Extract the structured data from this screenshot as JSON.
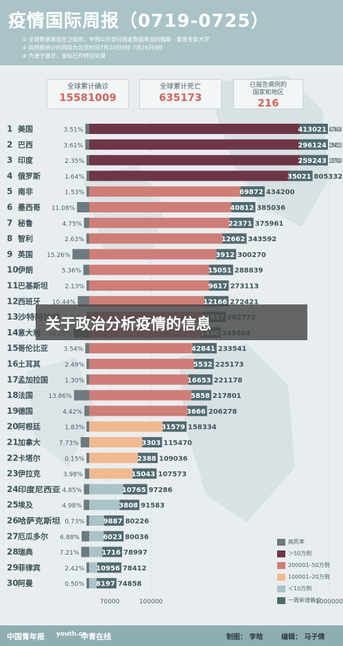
{
  "header": {
    "title": "疫情国际周报（0719-0725）",
    "notes": [
      "① 全球数据来自世卫组织，中国以外部分国家数据来自约翰斯 · 霍普金斯大学",
      "② 病例数统计时间段为北京时间7月20日9时-7月26日9时",
      "③ 为便于展示，坐标已作特别处理"
    ]
  },
  "stats": [
    {
      "label": "全球累计确诊",
      "value": "15581009"
    },
    {
      "label": "全球累计死亡",
      "value": "635173"
    },
    {
      "label": "已报告病例的\n国家和地区",
      "value": "216"
    }
  ],
  "banner": {
    "text": "关于政治分析疫情的信息"
  },
  "legend": [
    {
      "label": "病死率",
      "color": "#6b7b80"
    },
    {
      "label": "＞50万例",
      "color": "#6e3545"
    },
    {
      "label": "200001–50万例",
      "color": "#cf7d76"
    },
    {
      "label": "100001–20万例",
      "color": "#f2b98f"
    },
    {
      "label": "＜10万例",
      "color": "#a9c3c6"
    },
    {
      "label": "一周新增确诊",
      "color": "#4f6a70"
    }
  ],
  "footer": {
    "logos": [
      "中国青年报",
      "youth.cn",
      "中青在线"
    ],
    "credit_maker": "制图： 李晗",
    "credit_editor": "编辑： 马子倩"
  },
  "chart_data": {
    "type": "bar",
    "xaxis_ticks": [
      "70000",
      "100000",
      "1000000"
    ],
    "colors": {
      "gt500k": "#6e3545",
      "200k_500k": "#cf7d76",
      "100k_200k": "#f2b98f",
      "lt100k": "#a9c3c6",
      "fatality": "#6b7b80"
    },
    "rows": [
      {
        "rank": 1,
        "country": "美国",
        "fatality": "3.51%",
        "weekly": "413021",
        "total": "4176416",
        "tier": "gt500k"
      },
      {
        "rank": 2,
        "country": "巴西",
        "fatality": "3.61%",
        "weekly": "296124",
        "total": "2394513",
        "tier": "gt500k"
      },
      {
        "rank": 3,
        "country": "印度",
        "fatality": "2.35%",
        "weekly": "259243",
        "total": "1337024",
        "tier": "gt500k"
      },
      {
        "rank": 4,
        "country": "俄罗斯",
        "fatality": "1.64%",
        "weekly": "35021",
        "total": "805332",
        "tier": "gt500k"
      },
      {
        "rank": 5,
        "country": "南非",
        "fatality": "1.53%",
        "weekly": "69872",
        "total": "434200",
        "tier": "200k_500k"
      },
      {
        "rank": 6,
        "country": "墨西哥",
        "fatality": "11.08%",
        "weekly": "40812",
        "total": "385036",
        "tier": "200k_500k"
      },
      {
        "rank": 7,
        "country": "秘鲁",
        "fatality": "4.75%",
        "weekly": "22371",
        "total": "375961",
        "tier": "200k_500k"
      },
      {
        "rank": 8,
        "country": "智利",
        "fatality": "2.63%",
        "weekly": "12662",
        "total": "343592",
        "tier": "200k_500k"
      },
      {
        "rank": 9,
        "country": "英国",
        "fatality": "15.26%",
        "weekly": "3912",
        "total": "300270",
        "tier": "200k_500k"
      },
      {
        "rank": 10,
        "country": "伊朗",
        "fatality": "5.36%",
        "weekly": "15051",
        "total": "288839",
        "tier": "200k_500k"
      },
      {
        "rank": 11,
        "country": "巴基斯坦",
        "fatality": "2.13%",
        "weekly": "9617",
        "total": "273113",
        "tier": "200k_500k"
      },
      {
        "rank": 12,
        "country": "西班牙",
        "fatality": "10.44%",
        "weekly": "12166",
        "total": "272421",
        "tier": "200k_500k"
      },
      {
        "rank": 13,
        "country": "沙特阿拉伯",
        "fatality": "1.02%",
        "weekly": "12937",
        "total": "262772",
        "tier": "200k_500k"
      },
      {
        "rank": 14,
        "country": "意大利",
        "fatality": "14.28%",
        "weekly": "1430",
        "total": "245864",
        "tier": "200k_500k"
      },
      {
        "rank": 15,
        "country": "哥伦比亚",
        "fatality": "3.54%",
        "weekly": "42841",
        "total": "233541",
        "tier": "200k_500k"
      },
      {
        "rank": 16,
        "country": "土耳其",
        "fatality": "2.49%",
        "weekly": "5532",
        "total": "225173",
        "tier": "200k_500k"
      },
      {
        "rank": 17,
        "country": "孟加拉国",
        "fatality": "1.30%",
        "weekly": "16653",
        "total": "221178",
        "tier": "200k_500k"
      },
      {
        "rank": 18,
        "country": "法国",
        "fatality": "13.86%",
        "weekly": "5858",
        "total": "217801",
        "tier": "200k_500k"
      },
      {
        "rank": 19,
        "country": "德国",
        "fatality": "4.42%",
        "weekly": "3666",
        "total": "206278",
        "tier": "200k_500k"
      },
      {
        "rank": 20,
        "country": "阿根廷",
        "fatality": "1.83%",
        "weekly": "31579",
        "total": "158334",
        "tier": "100k_200k"
      },
      {
        "rank": 21,
        "country": "加拿大",
        "fatality": "7.73%",
        "weekly": "3303",
        "total": "115470",
        "tier": "100k_200k"
      },
      {
        "rank": 22,
        "country": "卡塔尔",
        "fatality": "0.15%",
        "weekly": "2388",
        "total": "109036",
        "tier": "100k_200k"
      },
      {
        "rank": 23,
        "country": "伊拉克",
        "fatality": "3.98%",
        "weekly": "15043",
        "total": "107573",
        "tier": "100k_200k"
      },
      {
        "rank": 24,
        "country": "印度尼西亚",
        "fatality": "4.85%",
        "weekly": "10765",
        "total": "97286",
        "tier": "lt100k"
      },
      {
        "rank": 25,
        "country": "埃及",
        "fatality": "4.98%",
        "weekly": "3808",
        "total": "91583",
        "tier": "lt100k"
      },
      {
        "rank": 26,
        "country": "哈萨克斯坦",
        "fatality": "0.73%",
        "weekly": "9887",
        "total": "80226",
        "tier": "lt100k"
      },
      {
        "rank": 27,
        "country": "厄瓜多尔",
        "fatality": "6.88%",
        "weekly": "6023",
        "total": "80036",
        "tier": "lt100k"
      },
      {
        "rank": 28,
        "country": "瑞典",
        "fatality": "7.21%",
        "weekly": "1716",
        "total": "78997",
        "tier": "lt100k"
      },
      {
        "rank": 29,
        "country": "菲律宾",
        "fatality": "2.42%",
        "weekly": "10956",
        "total": "78412",
        "tier": "lt100k"
      },
      {
        "rank": 30,
        "country": "阿曼",
        "fatality": "0.50%",
        "weekly": "8197",
        "total": "74858",
        "tier": "lt100k"
      }
    ]
  }
}
